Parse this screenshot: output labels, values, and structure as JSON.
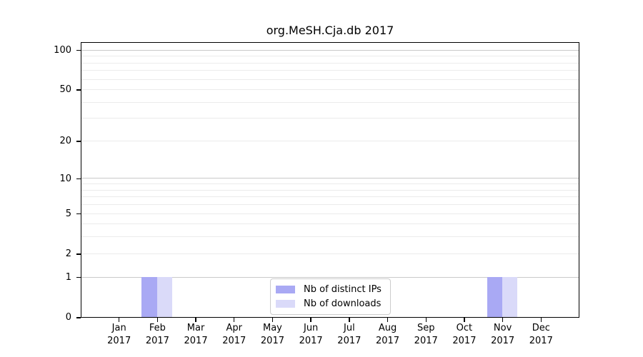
{
  "title": "org.MeSH.Cja.db 2017",
  "chart_data": {
    "type": "bar",
    "title": "org.MeSH.Cja.db 2017",
    "categories": [
      "Jan",
      "Feb",
      "Mar",
      "Apr",
      "May",
      "Jun",
      "Jul",
      "Aug",
      "Sep",
      "Oct",
      "Nov",
      "Dec"
    ],
    "category_year": "2017",
    "series": [
      {
        "name": "Nb of distinct IPs",
        "color": "#a9a9f4",
        "values": [
          0,
          1,
          0,
          0,
          0,
          0,
          0,
          0,
          0,
          0,
          1,
          0
        ]
      },
      {
        "name": "Nb of downloads",
        "color": "#dadaf9",
        "values": [
          0,
          1,
          0,
          0,
          0,
          0,
          0,
          0,
          0,
          0,
          1,
          0
        ]
      }
    ],
    "yscale": "log1p",
    "ylim": [
      0,
      115
    ],
    "y_ticks": [
      0,
      1,
      2,
      5,
      10,
      20,
      50,
      100
    ],
    "y_major_gridlines": [
      1,
      10,
      100
    ],
    "y_minor_gridlines": [
      2,
      3,
      4,
      5,
      6,
      7,
      8,
      9,
      20,
      30,
      40,
      50,
      60,
      70,
      80,
      90
    ],
    "grid": "horizontal",
    "legend_position": "bottom-center-inside",
    "colors": {
      "axis": "#000000",
      "major_grid": "#c9c9c9",
      "minor_grid": "#ebebeb",
      "background": "#ffffff"
    }
  }
}
